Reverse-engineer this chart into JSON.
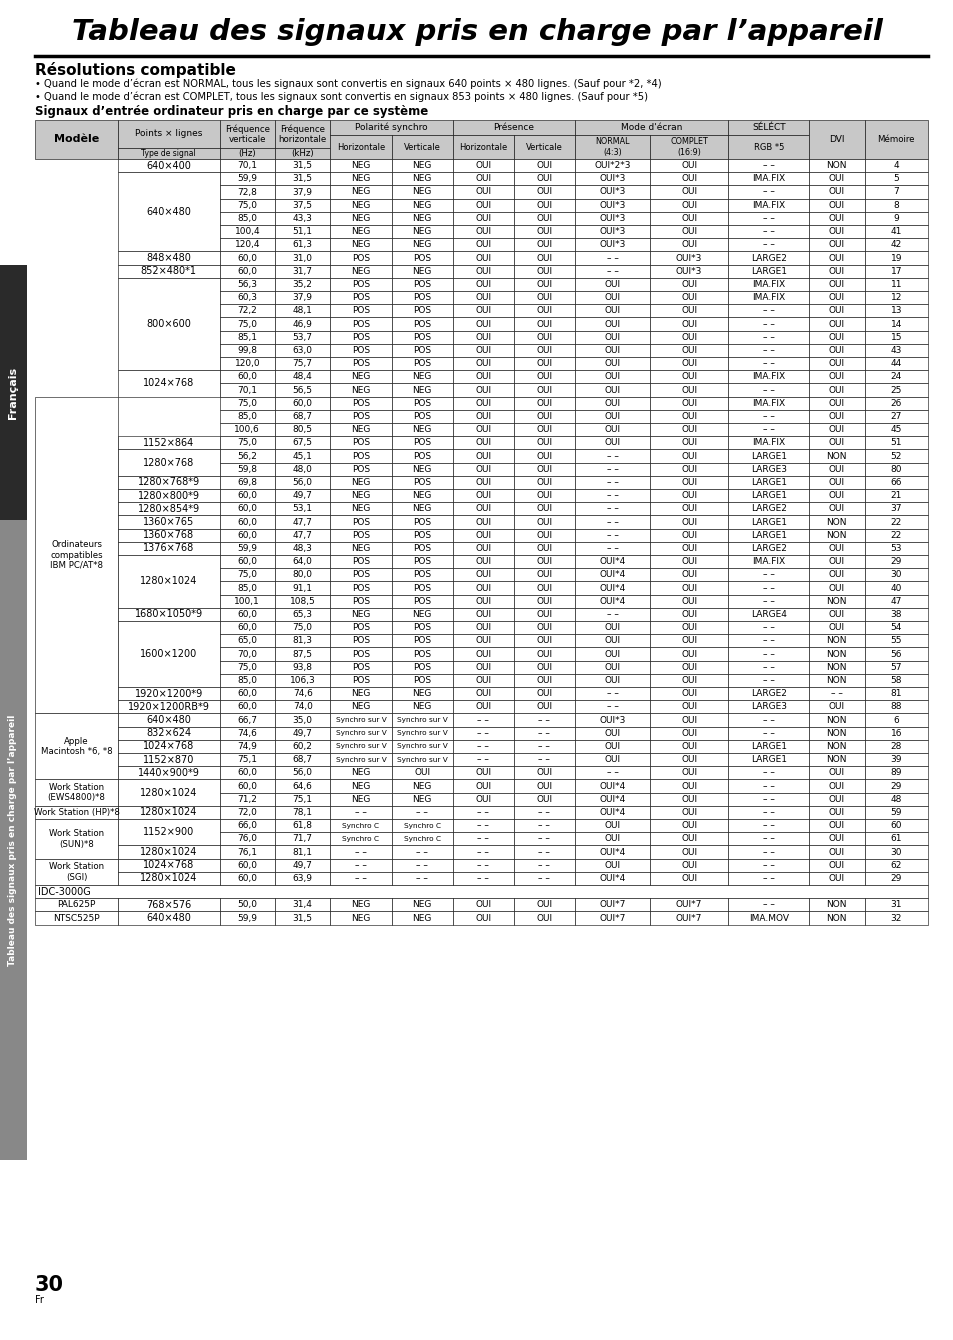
{
  "title": "Tableau des signaux pris en charge par l’appareil",
  "subtitle": "Résolutions compatible",
  "bullet1": "• Quand le mode d’écran est NORMAL, tous les signaux sont convertis en signaux 640 points × 480 lignes. (Sauf pour *2, *4)",
  "bullet2": "• Quand le mode d’écran est COMPLET, tous les signaux sont convertis en signaux 853 points × 480 lignes. (Sauf pour *5)",
  "section_title": "Signaux d’entrée ordinateur pris en charge par ce système",
  "rows": [
    [
      "",
      "640×400",
      "70,1",
      "31,5",
      "NEG",
      "NEG",
      "OUI",
      "OUI",
      "OUI*2*3",
      "OUI",
      "– –",
      "NON",
      "4"
    ],
    [
      "",
      "640×480",
      "59,9",
      "31,5",
      "NEG",
      "NEG",
      "OUI",
      "OUI",
      "OUI*3",
      "OUI",
      "IMA.FIX",
      "OUI",
      "5"
    ],
    [
      "",
      "",
      "72,8",
      "37,9",
      "NEG",
      "NEG",
      "OUI",
      "OUI",
      "OUI*3",
      "OUI",
      "– –",
      "OUI",
      "7"
    ],
    [
      "",
      "",
      "75,0",
      "37,5",
      "NEG",
      "NEG",
      "OUI",
      "OUI",
      "OUI*3",
      "OUI",
      "IMA.FIX",
      "OUI",
      "8"
    ],
    [
      "",
      "",
      "85,0",
      "43,3",
      "NEG",
      "NEG",
      "OUI",
      "OUI",
      "OUI*3",
      "OUI",
      "– –",
      "OUI",
      "9"
    ],
    [
      "",
      "",
      "100,4",
      "51,1",
      "NEG",
      "NEG",
      "OUI",
      "OUI",
      "OUI*3",
      "OUI",
      "– –",
      "OUI",
      "41"
    ],
    [
      "",
      "",
      "120,4",
      "61,3",
      "NEG",
      "NEG",
      "OUI",
      "OUI",
      "OUI*3",
      "OUI",
      "– –",
      "OUI",
      "42"
    ],
    [
      "",
      "848×480",
      "60,0",
      "31,0",
      "POS",
      "POS",
      "OUI",
      "OUI",
      "– –",
      "OUI*3",
      "LARGE2",
      "OUI",
      "19"
    ],
    [
      "",
      "852×480*1",
      "60,0",
      "31,7",
      "NEG",
      "NEG",
      "OUI",
      "OUI",
      "– –",
      "OUI*3",
      "LARGE1",
      "OUI",
      "17"
    ],
    [
      "",
      "800×600",
      "56,3",
      "35,2",
      "POS",
      "POS",
      "OUI",
      "OUI",
      "OUI",
      "OUI",
      "IMA.FIX",
      "OUI",
      "11"
    ],
    [
      "",
      "",
      "60,3",
      "37,9",
      "POS",
      "POS",
      "OUI",
      "OUI",
      "OUI",
      "OUI",
      "IMA.FIX",
      "OUI",
      "12"
    ],
    [
      "",
      "",
      "72,2",
      "48,1",
      "POS",
      "POS",
      "OUI",
      "OUI",
      "OUI",
      "OUI",
      "– –",
      "OUI",
      "13"
    ],
    [
      "",
      "",
      "75,0",
      "46,9",
      "POS",
      "POS",
      "OUI",
      "OUI",
      "OUI",
      "OUI",
      "– –",
      "OUI",
      "14"
    ],
    [
      "",
      "",
      "85,1",
      "53,7",
      "POS",
      "POS",
      "OUI",
      "OUI",
      "OUI",
      "OUI",
      "– –",
      "OUI",
      "15"
    ],
    [
      "",
      "",
      "99,8",
      "63,0",
      "POS",
      "POS",
      "OUI",
      "OUI",
      "OUI",
      "OUI",
      "– –",
      "OUI",
      "43"
    ],
    [
      "",
      "",
      "120,0",
      "75,7",
      "POS",
      "POS",
      "OUI",
      "OUI",
      "OUI",
      "OUI",
      "– –",
      "OUI",
      "44"
    ],
    [
      "",
      "1024×768",
      "60,0",
      "48,4",
      "NEG",
      "NEG",
      "OUI",
      "OUI",
      "OUI",
      "OUI",
      "IMA.FIX",
      "OUI",
      "24"
    ],
    [
      "",
      "",
      "70,1",
      "56,5",
      "NEG",
      "NEG",
      "OUI",
      "OUI",
      "OUI",
      "OUI",
      "– –",
      "OUI",
      "25"
    ],
    [
      "Ordinateurs\ncompatibles\nIBM PC/AT*8",
      "",
      "75,0",
      "60,0",
      "POS",
      "POS",
      "OUI",
      "OUI",
      "OUI",
      "OUI",
      "IMA.FIX",
      "OUI",
      "26"
    ],
    [
      "",
      "",
      "85,0",
      "68,7",
      "POS",
      "POS",
      "OUI",
      "OUI",
      "OUI",
      "OUI",
      "– –",
      "OUI",
      "27"
    ],
    [
      "",
      "",
      "100,6",
      "80,5",
      "NEG",
      "NEG",
      "OUI",
      "OUI",
      "OUI",
      "OUI",
      "– –",
      "OUI",
      "45"
    ],
    [
      "",
      "1152×864",
      "75,0",
      "67,5",
      "POS",
      "POS",
      "OUI",
      "OUI",
      "OUI",
      "OUI",
      "IMA.FIX",
      "OUI",
      "51"
    ],
    [
      "",
      "1280×768",
      "56,2",
      "45,1",
      "POS",
      "POS",
      "OUI",
      "OUI",
      "– –",
      "OUI",
      "LARGE1",
      "NON",
      "52"
    ],
    [
      "",
      "",
      "59,8",
      "48,0",
      "POS",
      "NEG",
      "OUI",
      "OUI",
      "– –",
      "OUI",
      "LARGE3",
      "OUI",
      "80"
    ],
    [
      "",
      "1280×768*9",
      "69,8",
      "56,0",
      "NEG",
      "POS",
      "OUI",
      "OUI",
      "– –",
      "OUI",
      "LARGE1",
      "OUI",
      "66"
    ],
    [
      "",
      "1280×800*9",
      "60,0",
      "49,7",
      "NEG",
      "NEG",
      "OUI",
      "OUI",
      "– –",
      "OUI",
      "LARGE1",
      "OUI",
      "21"
    ],
    [
      "",
      "1280×854*9",
      "60,0",
      "53,1",
      "NEG",
      "NEG",
      "OUI",
      "OUI",
      "– –",
      "OUI",
      "LARGE2",
      "OUI",
      "37"
    ],
    [
      "",
      "1360×765",
      "60,0",
      "47,7",
      "POS",
      "POS",
      "OUI",
      "OUI",
      "– –",
      "OUI",
      "LARGE1",
      "NON",
      "22"
    ],
    [
      "",
      "1360×768",
      "60,0",
      "47,7",
      "POS",
      "POS",
      "OUI",
      "OUI",
      "– –",
      "OUI",
      "LARGE1",
      "NON",
      "22"
    ],
    [
      "",
      "1376×768",
      "59,9",
      "48,3",
      "NEG",
      "POS",
      "OUI",
      "OUI",
      "– –",
      "OUI",
      "LARGE2",
      "OUI",
      "53"
    ],
    [
      "",
      "1280×1024",
      "60,0",
      "64,0",
      "POS",
      "POS",
      "OUI",
      "OUI",
      "OUI*4",
      "OUI",
      "IMA.FIX",
      "OUI",
      "29"
    ],
    [
      "",
      "",
      "75,0",
      "80,0",
      "POS",
      "POS",
      "OUI",
      "OUI",
      "OUI*4",
      "OUI",
      "– –",
      "OUI",
      "30"
    ],
    [
      "",
      "",
      "85,0",
      "91,1",
      "POS",
      "POS",
      "OUI",
      "OUI",
      "OUI*4",
      "OUI",
      "– –",
      "OUI",
      "40"
    ],
    [
      "",
      "",
      "100,1",
      "108,5",
      "POS",
      "POS",
      "OUI",
      "OUI",
      "OUI*4",
      "OUI",
      "– –",
      "NON",
      "47"
    ],
    [
      "",
      "1680×1050*9",
      "60,0",
      "65,3",
      "NEG",
      "NEG",
      "OUI",
      "OUI",
      "– –",
      "OUI",
      "LARGE4",
      "OUI",
      "38"
    ],
    [
      "",
      "1600×1200",
      "60,0",
      "75,0",
      "POS",
      "POS",
      "OUI",
      "OUI",
      "OUI",
      "OUI",
      "– –",
      "OUI",
      "54"
    ],
    [
      "",
      "",
      "65,0",
      "81,3",
      "POS",
      "POS",
      "OUI",
      "OUI",
      "OUI",
      "OUI",
      "– –",
      "NON",
      "55"
    ],
    [
      "",
      "",
      "70,0",
      "87,5",
      "POS",
      "POS",
      "OUI",
      "OUI",
      "OUI",
      "OUI",
      "– –",
      "NON",
      "56"
    ],
    [
      "",
      "",
      "75,0",
      "93,8",
      "POS",
      "POS",
      "OUI",
      "OUI",
      "OUI",
      "OUI",
      "– –",
      "NON",
      "57"
    ],
    [
      "",
      "",
      "85,0",
      "106,3",
      "POS",
      "POS",
      "OUI",
      "OUI",
      "OUI",
      "OUI",
      "– –",
      "NON",
      "58"
    ],
    [
      "",
      "1920×1200*9",
      "60,0",
      "74,6",
      "NEG",
      "NEG",
      "OUI",
      "OUI",
      "– –",
      "OUI",
      "LARGE2",
      "– –",
      "81"
    ],
    [
      "",
      "1920×1200RB*9",
      "60,0",
      "74,0",
      "NEG",
      "NEG",
      "OUI",
      "OUI",
      "– –",
      "OUI",
      "LARGE3",
      "OUI",
      "88"
    ],
    [
      "Apple\nMacintosh *6, *8",
      "640×480",
      "66,7",
      "35,0",
      "Synchro sur V",
      "Synchro sur V",
      "– –",
      "– –",
      "OUI*3",
      "OUI",
      "– –",
      "NON",
      "6"
    ],
    [
      "",
      "832×624",
      "74,6",
      "49,7",
      "Synchro sur V",
      "Synchro sur V",
      "– –",
      "– –",
      "OUI",
      "OUI",
      "– –",
      "NON",
      "16"
    ],
    [
      "",
      "1024×768",
      "74,9",
      "60,2",
      "Synchro sur V",
      "Synchro sur V",
      "– –",
      "– –",
      "OUI",
      "OUI",
      "LARGE1",
      "NON",
      "28"
    ],
    [
      "",
      "1152×870",
      "75,1",
      "68,7",
      "Synchro sur V",
      "Synchro sur V",
      "– –",
      "– –",
      "OUI",
      "OUI",
      "LARGE1",
      "NON",
      "39"
    ],
    [
      "",
      "1440×900*9",
      "60,0",
      "56,0",
      "NEG",
      "OUI",
      "OUI",
      "OUI",
      "– –",
      "OUI",
      "– –",
      "OUI",
      "89"
    ],
    [
      "Work Station\n(EWS4800)*8",
      "1280×1024",
      "60,0",
      "64,6",
      "NEG",
      "NEG",
      "OUI",
      "OUI",
      "OUI*4",
      "OUI",
      "– –",
      "OUI",
      "29"
    ],
    [
      "",
      "",
      "71,2",
      "75,1",
      "NEG",
      "NEG",
      "OUI",
      "OUI",
      "OUI*4",
      "OUI",
      "– –",
      "OUI",
      "48"
    ],
    [
      "Work Station (HP)*8",
      "1280×1024",
      "72,0",
      "78,1",
      "– –",
      "– –",
      "– –",
      "– –",
      "OUI*4",
      "OUI",
      "– –",
      "OUI",
      "59"
    ],
    [
      "Work Station\n(SUN)*8",
      "1152×900",
      "66,0",
      "61,8",
      "Synchro C",
      "Synchro C",
      "– –",
      "– –",
      "OUI",
      "OUI",
      "– –",
      "OUI",
      "60"
    ],
    [
      "",
      "",
      "76,0",
      "71,7",
      "Synchro C",
      "Synchro C",
      "– –",
      "– –",
      "OUI",
      "OUI",
      "– –",
      "OUI",
      "61"
    ],
    [
      "",
      "1280×1024",
      "76,1",
      "81,1",
      "– –",
      "– –",
      "– –",
      "– –",
      "OUI*4",
      "OUI",
      "– –",
      "OUI",
      "30"
    ],
    [
      "Work Station\n(SGI)",
      "1024×768",
      "60,0",
      "49,7",
      "– –",
      "– –",
      "– –",
      "– –",
      "OUI",
      "OUI",
      "– –",
      "OUI",
      "62"
    ],
    [
      "",
      "1280×1024",
      "60,0",
      "63,9",
      "– –",
      "– –",
      "– –",
      "– –",
      "OUI*4",
      "OUI",
      "– –",
      "OUI",
      "29"
    ],
    [
      "IDC-3000G",
      "",
      "",
      "",
      "",
      "",
      "",
      "",
      "",
      "",
      "",
      "",
      ""
    ],
    [
      "PAL625P",
      "768×576",
      "50,0",
      "31,4",
      "NEG",
      "NEG",
      "OUI",
      "OUI",
      "OUI*7",
      "OUI*7",
      "– –",
      "NON",
      "31"
    ],
    [
      "NTSC525P",
      "640×480",
      "59,9",
      "31,5",
      "NEG",
      "NEG",
      "OUI",
      "OUI",
      "OUI*7",
      "OUI*7",
      "IMA.MOV",
      "NON",
      "32"
    ]
  ]
}
